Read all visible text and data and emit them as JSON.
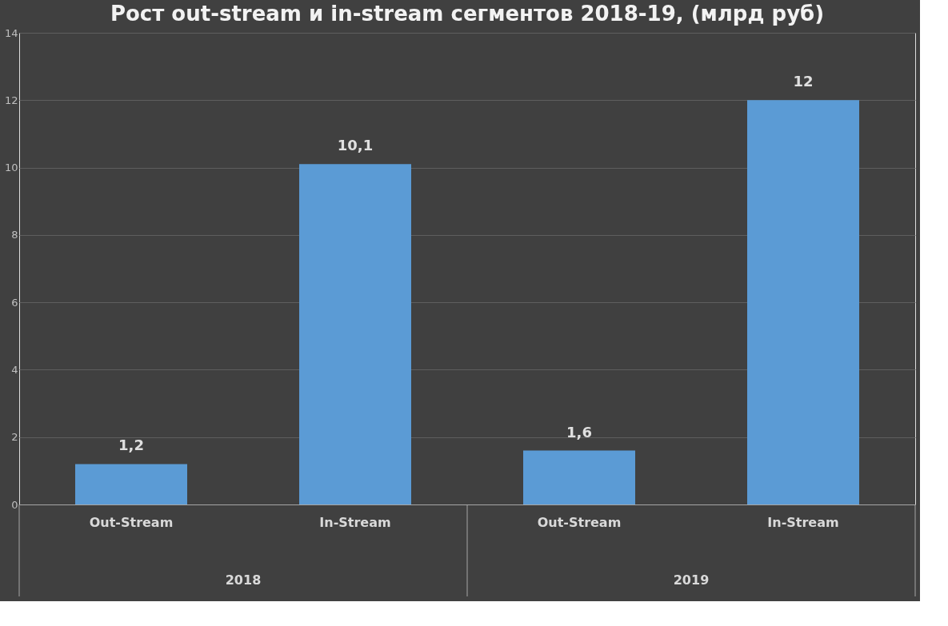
{
  "chart_data": {
    "type": "bar",
    "title": "Рост out-stream и in-stream сегментов 2018-19, (млрд руб)",
    "categories": [
      "Out-Stream",
      "In-Stream",
      "Out-Stream",
      "In-Stream"
    ],
    "values": [
      1.2,
      10.1,
      1.6,
      12
    ],
    "value_labels": [
      "1,2",
      "10,1",
      "1,6",
      "12"
    ],
    "color": "#5b9bd5",
    "ylim": [
      0,
      14
    ],
    "yticks": [
      0,
      2,
      4,
      6,
      8,
      10,
      12,
      14
    ],
    "grid": "y",
    "annotations": [
      "2018",
      "2019"
    ]
  }
}
